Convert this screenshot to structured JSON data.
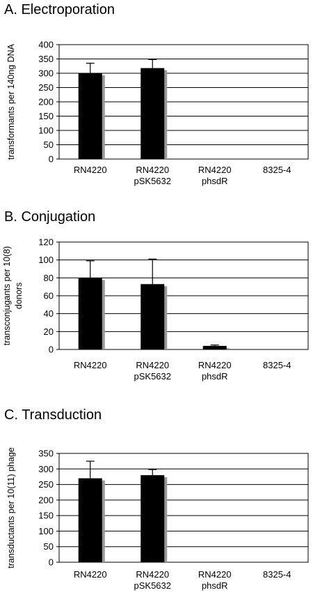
{
  "chart_data": [
    {
      "type": "bar",
      "title": "A. Electroporation",
      "ylabel": [
        "transformants per 140ng DNA"
      ],
      "categories": [
        [
          "RN4220"
        ],
        [
          "RN4220",
          "pSK5632"
        ],
        [
          "RN4220",
          "phsdR"
        ],
        [
          "8325-4"
        ]
      ],
      "values": [
        300,
        318,
        0,
        0
      ],
      "error_upper": [
        335,
        348,
        0,
        0
      ],
      "ylim": [
        0,
        400
      ],
      "ticks": [
        0,
        50,
        100,
        150,
        200,
        250,
        300,
        350,
        400
      ],
      "grid": true,
      "legend": "none",
      "colors": {
        "bar": "#000000",
        "shadow": "#999999"
      }
    },
    {
      "type": "bar",
      "title": "B. Conjugation",
      "ylabel": [
        "transconjugants per 10(8)",
        "donors"
      ],
      "categories": [
        [
          "RN4220"
        ],
        [
          "RN4220",
          "pSK5632"
        ],
        [
          "RN4220",
          "phsdR"
        ],
        [
          "8325-4"
        ]
      ],
      "values": [
        80,
        73,
        4,
        0
      ],
      "error_upper": [
        99,
        101,
        5,
        0
      ],
      "ylim": [
        0,
        120
      ],
      "ticks": [
        0,
        20,
        40,
        60,
        80,
        100,
        120
      ],
      "grid": true,
      "legend": "none",
      "colors": {
        "bar": "#000000",
        "shadow": "#999999"
      }
    },
    {
      "type": "bar",
      "title": "C. Transduction",
      "ylabel": [
        "transductants per 10(11) phage"
      ],
      "categories": [
        [
          "RN4220"
        ],
        [
          "RN4220",
          "pSK5632"
        ],
        [
          "RN4220",
          "phsdR"
        ],
        [
          "8325-4"
        ]
      ],
      "values": [
        270,
        280,
        0,
        0
      ],
      "error_upper": [
        325,
        298,
        0,
        0
      ],
      "ylim": [
        0,
        350
      ],
      "ticks": [
        0,
        50,
        100,
        150,
        200,
        250,
        300,
        350
      ],
      "grid": true,
      "legend": "none",
      "colors": {
        "bar": "#000000",
        "shadow": "#999999"
      }
    }
  ]
}
